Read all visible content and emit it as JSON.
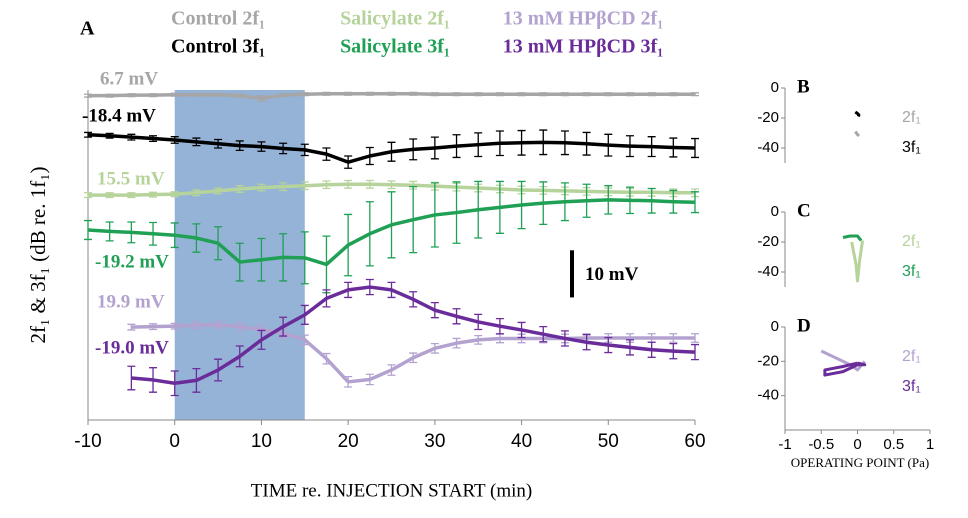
{
  "chart_data": [
    {
      "type": "line",
      "panel_label": "A",
      "xlabel": "TIME re. INJECTION START (min)",
      "ylabel": "2f₁ & 3f₁ (dB re. 1f₁)",
      "xlim": [
        -10,
        60
      ],
      "xticks": [
        -10,
        0,
        10,
        20,
        30,
        40,
        50,
        60
      ],
      "ylim": [
        0,
        70
      ],
      "shade": [
        0,
        15
      ],
      "shade_color": "#4f81bd",
      "scale_bar": {
        "value": 10,
        "label": "10 mV"
      },
      "series": [
        {
          "name": "Control 2f₁",
          "color": "#a6a6a6",
          "label": "6.7 mV",
          "x": [
            -10,
            -7.5,
            -5,
            -2.5,
            0,
            2.5,
            5,
            7.5,
            10,
            12.5,
            15,
            17.5,
            20,
            22.5,
            25,
            27.5,
            30,
            32.5,
            35,
            37.5,
            40,
            42.5,
            45,
            47.5,
            50,
            52.5,
            55,
            57.5,
            60
          ],
          "values": [
            68.8,
            68.8,
            68.9,
            68.9,
            69,
            69,
            69,
            68.8,
            68.2,
            68.9,
            69.1,
            69.2,
            69.2,
            69.2,
            69.2,
            69.2,
            69.1,
            69.1,
            69.1,
            69.1,
            69.1,
            69.1,
            69.1,
            69.1,
            69.1,
            69.1,
            69.1,
            69.1,
            69.1
          ],
          "errors": [
            0.3,
            0.3,
            0.3,
            0.3,
            0.3,
            0.3,
            0.3,
            0.3,
            0.6,
            0.3,
            0.3,
            0.3,
            0.3,
            0.3,
            0.3,
            0.3,
            0.3,
            0.3,
            0.3,
            0.3,
            0.3,
            0.3,
            0.3,
            0.3,
            0.3,
            0.3,
            0.3,
            0.3,
            0.3
          ]
        },
        {
          "name": "Control 3f₁",
          "color": "#000000",
          "label": "-18.4 mV",
          "x": [
            -10,
            -7.5,
            -5,
            -2.5,
            0,
            2.5,
            5,
            7.5,
            10,
            12.5,
            15,
            17.5,
            20,
            22.5,
            25,
            27.5,
            30,
            32.5,
            35,
            37.5,
            40,
            42.5,
            45,
            47.5,
            50,
            52.5,
            55,
            57.5,
            60
          ],
          "values": [
            60.5,
            60.3,
            60.0,
            59.7,
            59.4,
            59.0,
            58.6,
            58.2,
            58.0,
            57.6,
            57.3,
            56.4,
            54.7,
            56.0,
            56.9,
            57.4,
            57.7,
            58.1,
            58.4,
            58.7,
            58.8,
            58.9,
            58.8,
            58.6,
            58.3,
            58.1,
            58.0,
            57.8,
            57.7
          ],
          "errors": [
            0.5,
            0.5,
            0.6,
            0.6,
            0.7,
            0.8,
            0.9,
            1,
            1,
            1.1,
            1.2,
            1.3,
            1.3,
            1.8,
            2,
            2.2,
            2.3,
            2.4,
            2.5,
            2.6,
            2.6,
            2.6,
            2.5,
            2.4,
            2.3,
            2.2,
            2.1,
            2,
            2
          ]
        },
        {
          "name": "Salicylate 2f₁",
          "color": "#b5d39a",
          "label": "15.5 mV",
          "x": [
            -10,
            -7.5,
            -5,
            -2.5,
            0,
            2.5,
            5,
            7.5,
            10,
            12.5,
            15,
            17.5,
            20,
            22.5,
            25,
            27.5,
            30,
            32.5,
            35,
            37.5,
            40,
            42.5,
            45,
            47.5,
            50,
            52.5,
            55,
            57.5,
            60
          ],
          "values": [
            47.7,
            47.7,
            47.7,
            47.8,
            47.9,
            48.2,
            48.6,
            49.0,
            49.3,
            49.5,
            49.7,
            49.9,
            50.0,
            50.0,
            49.9,
            49.8,
            49.6,
            49.4,
            49.2,
            49.0,
            48.8,
            48.7,
            48.6,
            48.5,
            48.4,
            48.3,
            48.3,
            48.2,
            48.2
          ],
          "errors": [
            0.5,
            0.5,
            0.5,
            0.5,
            0.5,
            0.6,
            0.6,
            0.7,
            0.7,
            0.8,
            0.8,
            0.8,
            0.8,
            0.8,
            0.8,
            0.8,
            0.8,
            0.8,
            0.8,
            0.8,
            0.8,
            0.8,
            0.8,
            0.8,
            0.8,
            0.8,
            0.8,
            0.8,
            0.8
          ]
        },
        {
          "name": "Salicylate 3f₁",
          "color": "#1fa055",
          "label": "-19.2 mV",
          "x": [
            -10,
            -7.5,
            -5,
            -2.5,
            0,
            2.5,
            5,
            7.5,
            10,
            12.5,
            15,
            17.5,
            20,
            22.5,
            25,
            27.5,
            30,
            32.5,
            35,
            37.5,
            40,
            42.5,
            45,
            47.5,
            50,
            52.5,
            55,
            57.5,
            60
          ],
          "values": [
            40.3,
            40.0,
            39.8,
            39.5,
            39.2,
            38.6,
            37.5,
            33.5,
            34.0,
            34.5,
            34.4,
            33.0,
            37.1,
            39.5,
            41.4,
            42.5,
            43.5,
            44.0,
            44.6,
            45.1,
            45.6,
            46.0,
            46.3,
            46.5,
            46.7,
            46.6,
            46.5,
            46.3,
            46.2
          ],
          "errors": [
            2,
            2,
            2.2,
            2.4,
            2.6,
            3,
            3.5,
            4,
            4.5,
            5,
            5.5,
            6,
            6.5,
            6.8,
            7,
            7,
            6.8,
            6.5,
            6,
            5.5,
            5,
            4.5,
            4,
            3.5,
            3,
            2.8,
            2.6,
            2.4,
            2.2
          ]
        },
        {
          "name": "13 mM HPβCD 2f₁",
          "color": "#b3a2cf",
          "label": "19.9 mV",
          "x": [
            -5,
            -2.5,
            0,
            2.5,
            5,
            7.5,
            10,
            12.5,
            15,
            17.5,
            20,
            22.5,
            25,
            27.5,
            30,
            32.5,
            35,
            37.5,
            40,
            42.5,
            45,
            47.5,
            50,
            52.5,
            55,
            57.5,
            60
          ],
          "values": [
            19.7,
            19.8,
            19.9,
            20.1,
            20.2,
            19.8,
            19.2,
            18.4,
            17.0,
            13.0,
            8.1,
            8.6,
            10.6,
            13.2,
            15.2,
            16.3,
            17.0,
            17.3,
            17.3,
            17.3,
            17.3,
            17.4,
            17.4,
            17.4,
            17.4,
            17.4,
            17.4
          ],
          "errors": [
            0.6,
            0.6,
            0.6,
            0.7,
            0.7,
            0.8,
            0.9,
            1,
            1,
            1.1,
            1.1,
            1.1,
            1.1,
            1,
            1,
            1,
            0.9,
            0.9,
            0.9,
            0.9,
            0.9,
            0.9,
            0.9,
            0.9,
            0.9,
            0.9,
            0.9
          ]
        },
        {
          "name": "13 mM HPβCD 3f₁",
          "color": "#6a2c9a",
          "label": "-19.0 mV",
          "x": [
            -5,
            -2.5,
            0,
            2.5,
            5,
            7.5,
            10,
            12.5,
            15,
            17.5,
            20,
            22.5,
            25,
            27.5,
            30,
            32.5,
            35,
            37.5,
            40,
            42.5,
            45,
            47.5,
            50,
            52.5,
            55,
            57.5,
            60
          ],
          "values": [
            8.9,
            8.5,
            7.8,
            8.4,
            10.6,
            13.5,
            17.0,
            19.8,
            22.3,
            25.8,
            27.6,
            28.2,
            27.6,
            25.6,
            23.3,
            22.0,
            20.8,
            19.9,
            19.1,
            18.2,
            17.3,
            16.5,
            15.9,
            15.4,
            14.9,
            14.6,
            14.4
          ],
          "errors": [
            2.5,
            2.6,
            2.6,
            2.5,
            2.3,
            2.2,
            2,
            2,
            2,
            1.8,
            1.6,
            1.6,
            1.6,
            1.6,
            1.6,
            1.6,
            1.6,
            1.6,
            1.6,
            1.6,
            1.6,
            1.6,
            1.6,
            1.6,
            1.6,
            1.6,
            1.6
          ]
        }
      ]
    },
    {
      "type": "line",
      "panel_label": "B",
      "xlim": [
        -1,
        1
      ],
      "ylim": [
        -50,
        0
      ],
      "yticks": [
        0,
        -20,
        -40
      ],
      "series": [
        {
          "name": "2f₁",
          "color": "#a6a6a6",
          "x": [
            -0.03,
            0,
            0.02
          ],
          "values": [
            -29,
            -31,
            -32
          ]
        },
        {
          "name": "3f₁",
          "color": "#000000",
          "x": [
            -0.03,
            0,
            0.02,
            0.01
          ],
          "values": [
            -16,
            -17,
            -18,
            -19
          ]
        }
      ]
    },
    {
      "type": "line",
      "panel_label": "C",
      "xlim": [
        -1,
        1
      ],
      "ylim": [
        -50,
        0
      ],
      "yticks": [
        0,
        -20,
        -40
      ],
      "series": [
        {
          "name": "2f₁",
          "color": "#b5d39a",
          "x": [
            -0.08,
            -0.02,
            0,
            0.03,
            0.07
          ],
          "values": [
            -20,
            -35,
            -46,
            -32,
            -19
          ]
        },
        {
          "name": "3f₁",
          "color": "#1fa055",
          "x": [
            -0.2,
            -0.1,
            0,
            0.05
          ],
          "values": [
            -17,
            -16,
            -16,
            -19
          ]
        }
      ]
    },
    {
      "type": "line",
      "panel_label": "D",
      "xlim": [
        -1,
        1
      ],
      "ylim": [
        -60,
        0
      ],
      "yticks": [
        0,
        -20,
        -40
      ],
      "xticks": [
        -1,
        -0.5,
        0,
        0.5,
        1
      ],
      "xlabel": "OPERATING POINT (Pa)",
      "series": [
        {
          "name": "2f₁",
          "color": "#b3a2cf",
          "x": [
            -0.5,
            -0.3,
            -0.1,
            0,
            0.1
          ],
          "values": [
            -14,
            -18,
            -22,
            -25,
            -20
          ]
        },
        {
          "name": "3f₁",
          "color": "#6a2c9a",
          "x": [
            0,
            -0.2,
            -0.45,
            -0.45,
            -0.2,
            0,
            0.1,
            0
          ],
          "values": [
            -21,
            -23,
            -25,
            -28,
            -26,
            -22,
            -22,
            -21
          ]
        }
      ]
    }
  ]
}
